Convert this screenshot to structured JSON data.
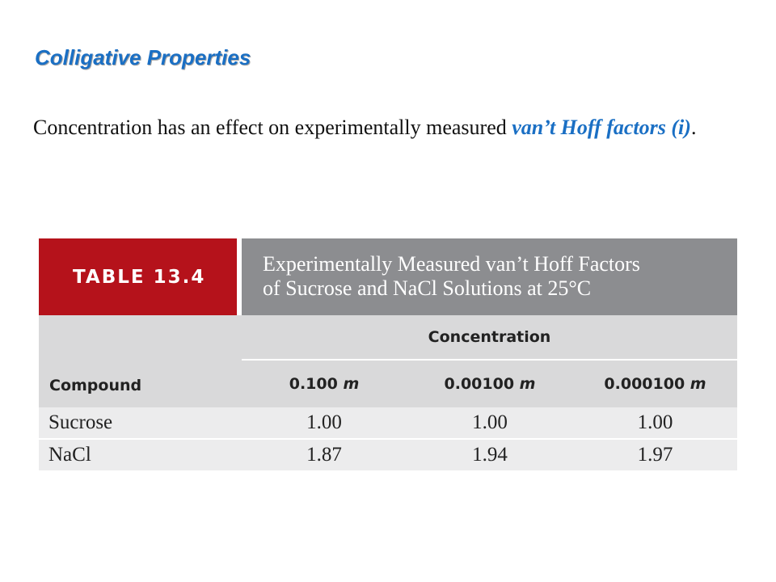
{
  "title": "Colligative Properties",
  "body": {
    "text_before": "Concentration has an effect on experimentally measured ",
    "highlight": "van’t Hoff factors (i)",
    "text_after": "."
  },
  "table": {
    "label": "TABLE 13.4",
    "caption_line1": "Experimentally Measured van’t Hoff Factors",
    "caption_line2": "of Sucrose and NaCl Solutions at 25°C",
    "span_header": "Concentration",
    "first_col_header": "Compound",
    "columns": [
      {
        "value": "0.100",
        "unit": "m"
      },
      {
        "value": "0.00100",
        "unit": "m"
      },
      {
        "value": "0.000100",
        "unit": "m"
      }
    ],
    "rows": [
      {
        "compound": "Sucrose",
        "values": [
          "1.00",
          "1.00",
          "1.00"
        ]
      },
      {
        "compound": "NaCl",
        "values": [
          "1.87",
          "1.94",
          "1.97"
        ]
      }
    ]
  }
}
